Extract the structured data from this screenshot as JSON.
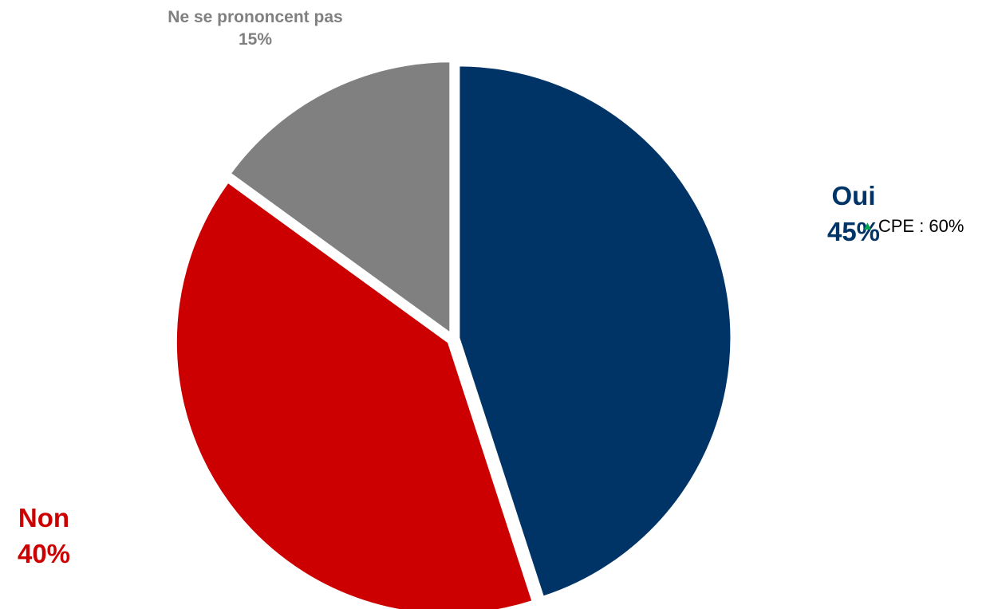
{
  "chart_data": {
    "type": "pie",
    "slices": [
      {
        "label": "Oui",
        "value": 45,
        "value_label": "45%",
        "color": "#003366"
      },
      {
        "label": "Non",
        "value": 40,
        "value_label": "40%",
        "color": "#CC0000"
      },
      {
        "label": "Ne se prononcent pas",
        "value": 15,
        "value_label": "15%",
        "color": "#808080"
      }
    ],
    "annotation": {
      "text": "CPE : 60%",
      "marker": "up-triangle-icon",
      "marker_color": "#00A651",
      "attached_to": "Oui"
    },
    "legend": "none"
  }
}
